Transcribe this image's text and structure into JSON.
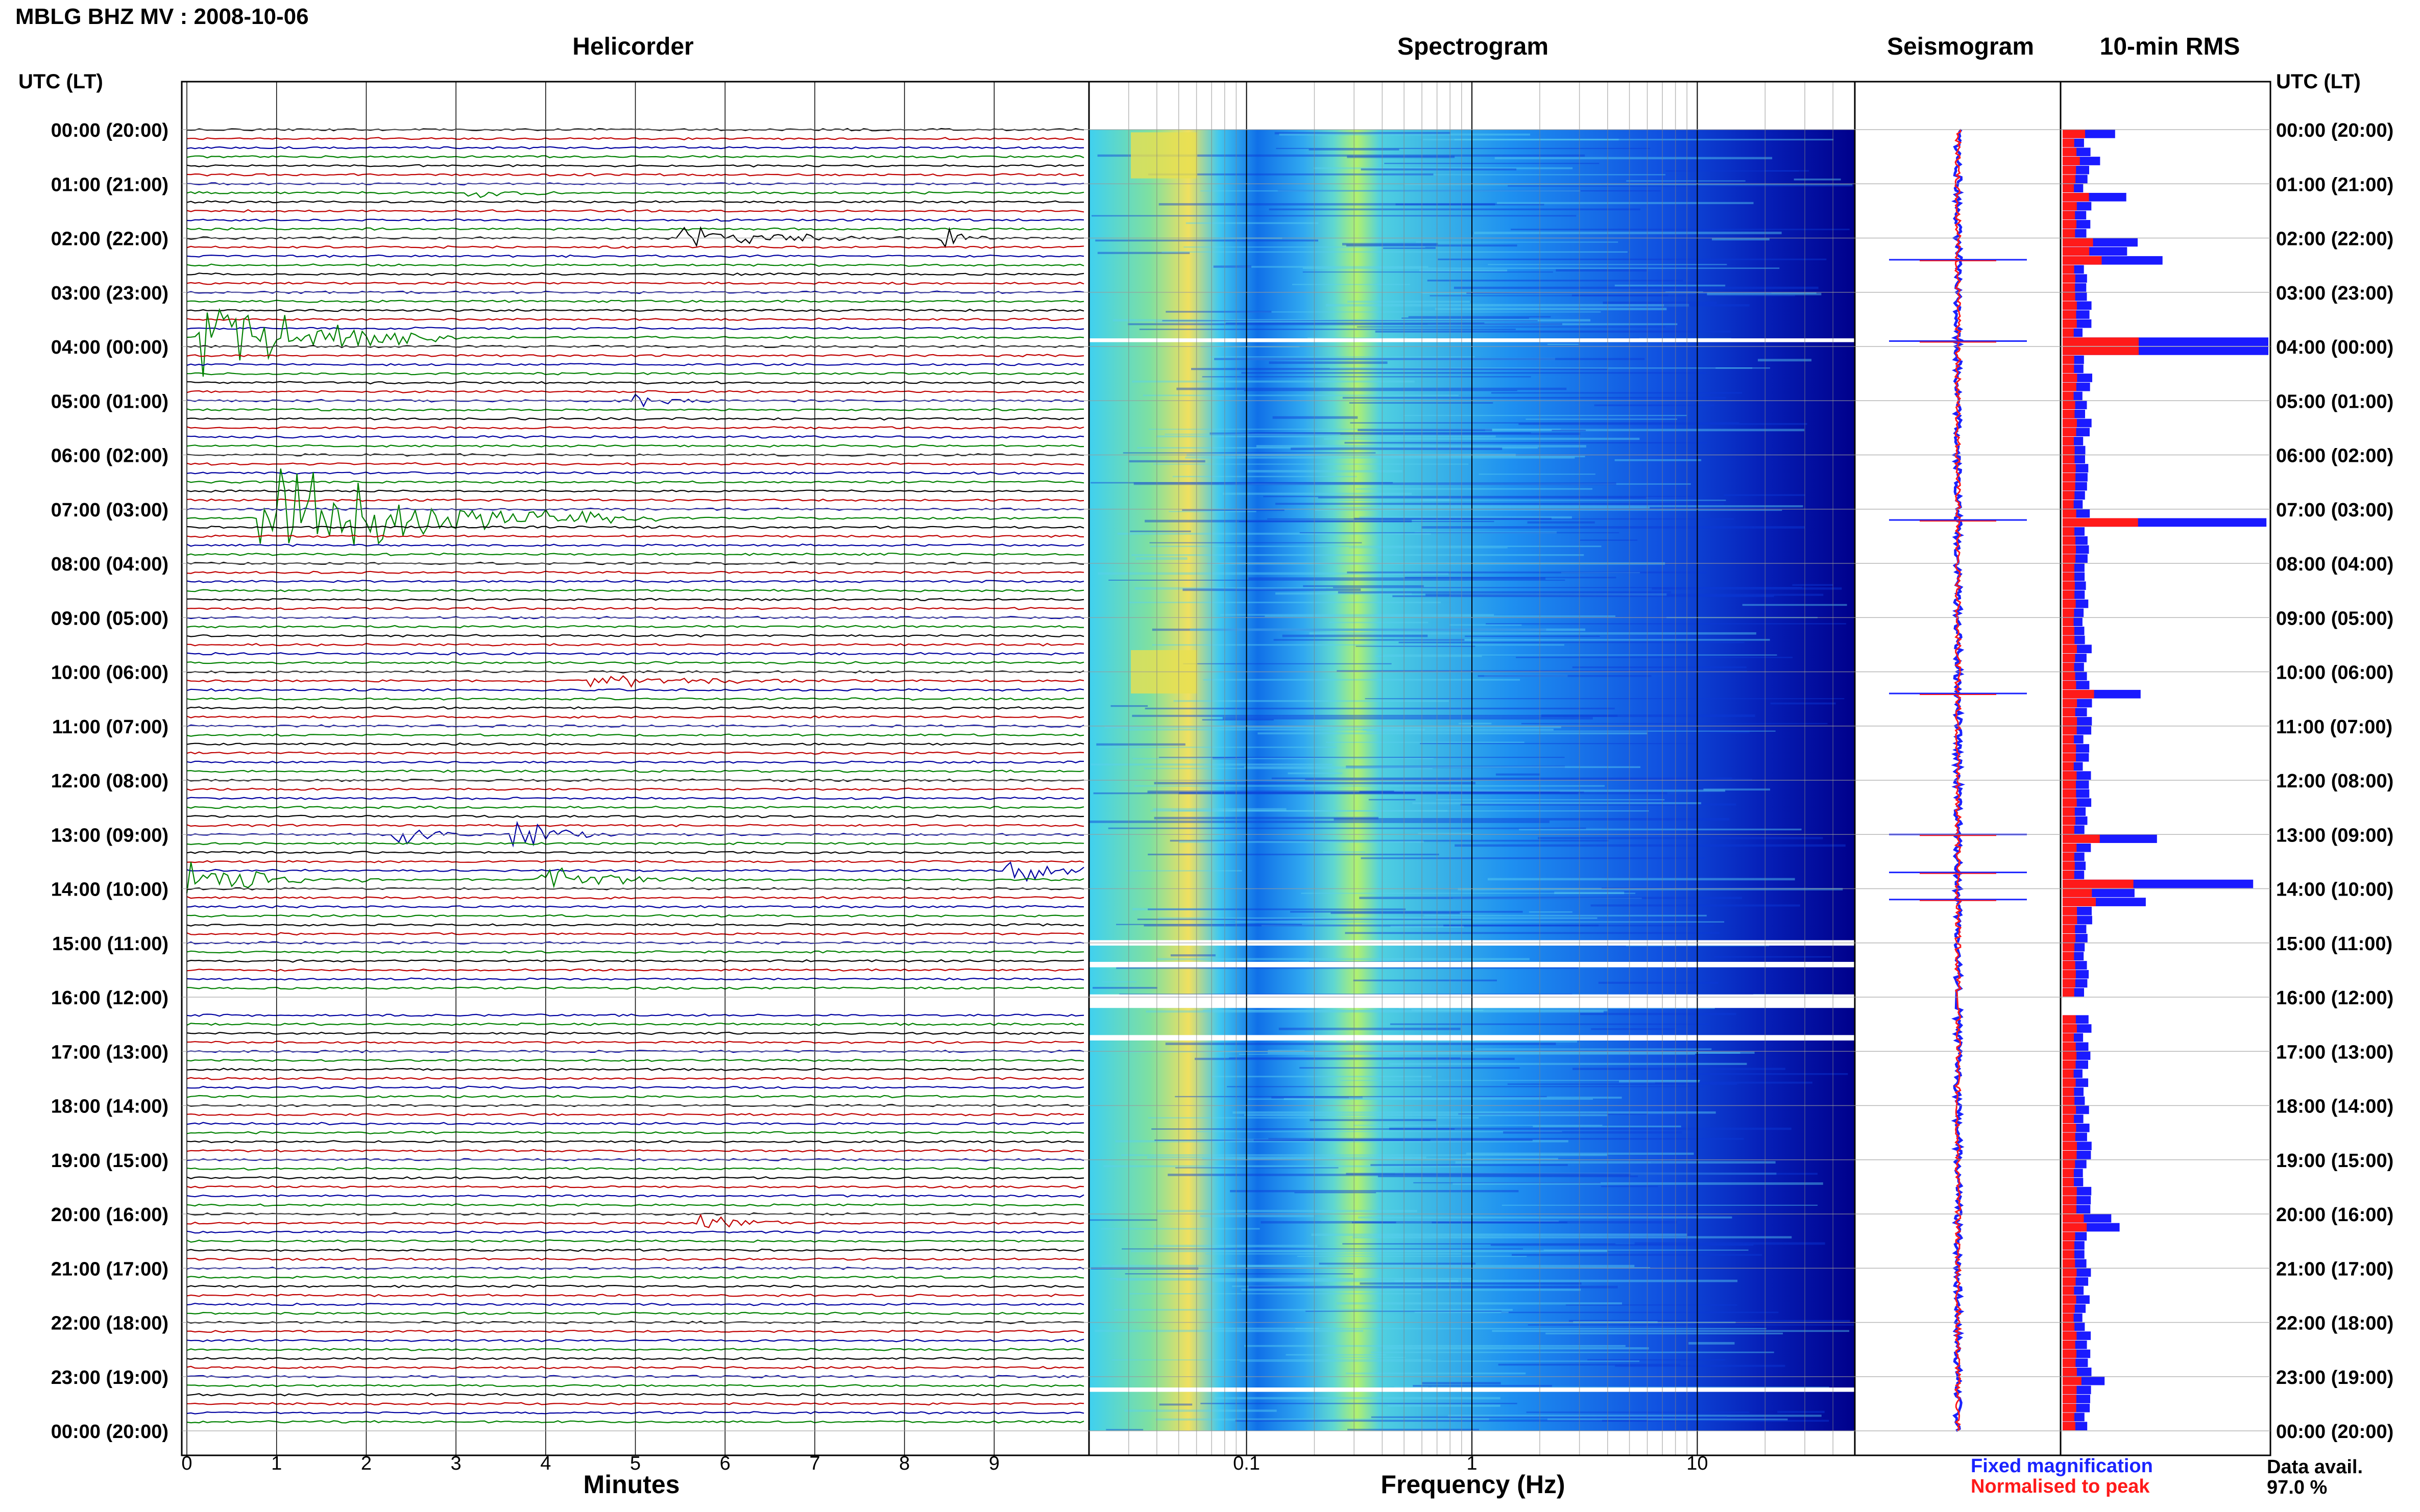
{
  "title": "MBLG BHZ MV : 2008-10-06",
  "panels": {
    "helicorder": "Helicorder",
    "spectrogram": "Spectrogram",
    "seismogram": "Seismogram",
    "rms": "10-min RMS"
  },
  "time_axis_header": "UTC (LT)",
  "time_labels": [
    "00:00 (20:00)",
    "01:00 (21:00)",
    "02:00 (22:00)",
    "03:00 (23:00)",
    "04:00 (00:00)",
    "05:00 (01:00)",
    "06:00 (02:00)",
    "07:00 (03:00)",
    "08:00 (04:00)",
    "09:00 (05:00)",
    "10:00 (06:00)",
    "11:00 (07:00)",
    "12:00 (08:00)",
    "13:00 (09:00)",
    "14:00 (10:00)",
    "15:00 (11:00)",
    "16:00 (12:00)",
    "17:00 (13:00)",
    "18:00 (14:00)",
    "19:00 (15:00)",
    "20:00 (16:00)",
    "21:00 (17:00)",
    "22:00 (18:00)",
    "23:00 (19:00)",
    "00:00 (20:00)"
  ],
  "x_labels": {
    "helicorder": "Minutes",
    "spectrogram": "Frequency (Hz)"
  },
  "legend": {
    "fixed": "Fixed magnification",
    "normalised": "Normalised to peak"
  },
  "data_availability": {
    "label": "Data avail.",
    "value": "97.0 %"
  },
  "colors": {
    "trace_cycle": [
      "#000000",
      "#c00000",
      "#0000a0",
      "#008000"
    ],
    "spectrogram_low": "#00008b",
    "spectrogram_high": "#ffff00",
    "rms_fixed": "#1a1aff",
    "rms_normalised": "#ff1a1a"
  },
  "chart_data": [
    {
      "type": "line",
      "panel": "helicorder",
      "xlabel": "Minutes",
      "x_ticks": [
        0,
        1,
        2,
        3,
        4,
        5,
        6,
        7,
        8,
        9
      ],
      "xlim": [
        0,
        10
      ],
      "rows_per_hour": 6,
      "traces": 144,
      "gap_hours": [
        16.0,
        16.2
      ],
      "events": [
        {
          "start_hour": 1.2,
          "minute": 3.1,
          "duration": 1.0,
          "amp": 0.8
        },
        {
          "start_hour": 2.0,
          "minute": 5.5,
          "duration": 2.5,
          "amp": 1.2
        },
        {
          "start_hour": 2.0,
          "minute": 8.4,
          "duration": 0.6,
          "amp": 1.5
        },
        {
          "start_hour": 3.8,
          "minute": 0.1,
          "duration": 3.0,
          "amp": 5.0
        },
        {
          "start_hour": 5.0,
          "minute": 5.0,
          "duration": 1.0,
          "amp": 0.6
        },
        {
          "start_hour": 7.2,
          "minute": 0.8,
          "duration": 4.5,
          "amp": 6.0
        },
        {
          "start_hour": 10.2,
          "minute": 4.5,
          "duration": 3.0,
          "amp": 0.6
        },
        {
          "start_hour": 13.0,
          "minute": 2.3,
          "duration": 1.0,
          "amp": 1.2
        },
        {
          "start_hour": 13.0,
          "minute": 3.6,
          "duration": 1.2,
          "amp": 1.8
        },
        {
          "start_hour": 13.6,
          "minute": 9.1,
          "duration": 1.0,
          "amp": 2.5
        },
        {
          "start_hour": 13.8,
          "minute": 0.0,
          "duration": 2.0,
          "amp": 2.0
        },
        {
          "start_hour": 13.8,
          "minute": 3.9,
          "duration": 2.0,
          "amp": 1.5
        },
        {
          "start_hour": 20.1,
          "minute": 5.7,
          "duration": 1.0,
          "amp": 0.9
        }
      ]
    },
    {
      "type": "heatmap",
      "panel": "spectrogram",
      "xlabel": "Frequency (Hz)",
      "x_scale": "log",
      "xlim": [
        0.02,
        50
      ],
      "x_ticks": [
        0.1,
        1,
        10
      ],
      "colormap": "jet",
      "gap_hours": [
        15.95,
        16.2
      ]
    },
    {
      "type": "line",
      "panel": "seismogram",
      "series": [
        {
          "name": "Fixed magnification"
        },
        {
          "name": "Normalised to peak"
        }
      ],
      "spikes_hour": [
        2.4,
        3.9,
        7.2,
        10.4,
        13.0,
        13.7,
        14.2
      ]
    },
    {
      "type": "bar",
      "panel": "rms",
      "orientation": "horizontal",
      "bin_minutes": 10,
      "series": [
        {
          "name": "Fixed magnification",
          "values_by_hour": [
            [
              0.0,
              0.25
            ],
            [
              0.5,
              0.2
            ],
            [
              1.2,
              0.28
            ],
            [
              2.1,
              0.35
            ],
            [
              2.3,
              0.5
            ],
            [
              3.9,
              0.95
            ],
            [
              4.0,
              0.98
            ],
            [
              7.2,
              1.0
            ],
            [
              10.3,
              0.42
            ],
            [
              13.0,
              0.55
            ],
            [
              13.8,
              1.0
            ],
            [
              14.1,
              0.35
            ],
            [
              20.1,
              0.25
            ],
            [
              23.0,
              0.18
            ]
          ]
        },
        {
          "name": "Normalised to peak"
        }
      ]
    }
  ]
}
